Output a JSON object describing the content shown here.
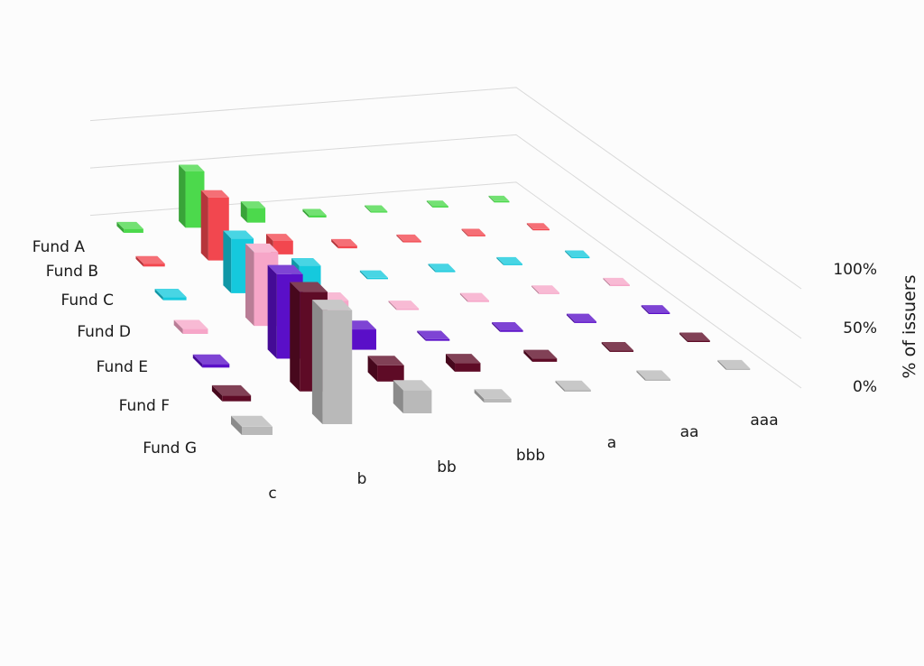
{
  "chart_data": {
    "type": "bar3d",
    "title": "",
    "zlabel": "% of issuers",
    "zlim": [
      0,
      100
    ],
    "ztick_labels": [
      "0%",
      "50%",
      "100%"
    ],
    "categories": [
      "c",
      "b",
      "bb",
      "bbb",
      "a",
      "aa",
      "aaa"
    ],
    "series": [
      {
        "name": "Fund A",
        "color": "#4cd94c",
        "values": [
          3,
          44,
          12,
          2,
          1,
          1,
          1
        ]
      },
      {
        "name": "Fund B",
        "color": "#f2474f",
        "values": [
          2,
          45,
          10,
          2,
          1,
          1,
          1
        ]
      },
      {
        "name": "Fund C",
        "color": "#15c9dd",
        "values": [
          2,
          36,
          14,
          1,
          1,
          1,
          1
        ]
      },
      {
        "name": "Fund D",
        "color": "#f6a6c8",
        "values": [
          3,
          45,
          11,
          1,
          1,
          1,
          1
        ]
      },
      {
        "name": "Fund E",
        "color": "#5a0fc8",
        "values": [
          2,
          48,
          12,
          1,
          1,
          1,
          1
        ]
      },
      {
        "name": "Fund F",
        "color": "#5e0b26",
        "values": [
          3,
          53,
          9,
          5,
          2,
          1,
          1
        ]
      },
      {
        "name": "Fund G",
        "color": "#b9b9b9",
        "values": [
          4,
          57,
          12,
          2,
          1,
          1,
          1
        ]
      }
    ]
  }
}
